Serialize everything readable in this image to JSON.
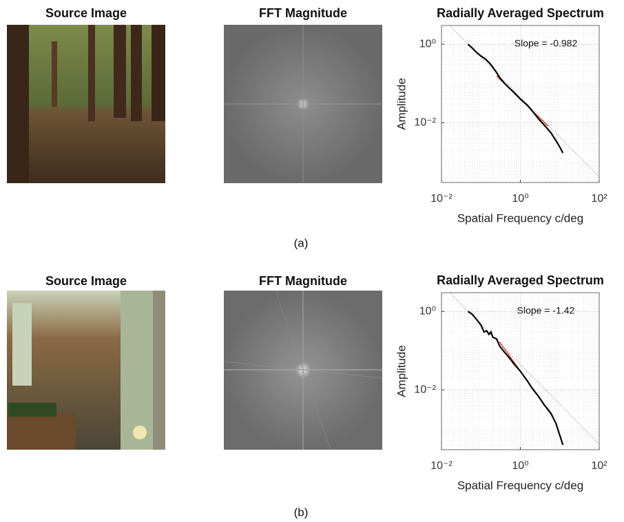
{
  "panels": [
    {
      "image_title": "Source Image",
      "fft_title": "FFT Magnitude",
      "caption": "(a)"
    },
    {
      "image_title": "Source Image",
      "fft_title": "FFT Magnitude",
      "caption": "(b)"
    }
  ],
  "chart_data": [
    {
      "type": "line",
      "title": "Radially Averaged Spectrum",
      "xlabel": "Spatial Frequency c/deg",
      "ylabel": "Amplitude",
      "annotation": "Slope = -0.982",
      "log_x": true,
      "log_y": true,
      "grid": true,
      "xlim": [
        0.01,
        100
      ],
      "ylim": [
        0.0003,
        3
      ],
      "xticks": [
        {
          "value": 0.01,
          "label": "10⁻²"
        },
        {
          "value": 1,
          "label": "10⁰"
        },
        {
          "value": 100,
          "label": "10²"
        }
      ],
      "yticks": [
        {
          "value": 0.01,
          "label": "10⁻²"
        },
        {
          "value": 1,
          "label": "10⁰"
        }
      ],
      "x": [
        0.047,
        0.06,
        0.08,
        0.1,
        0.13,
        0.17,
        0.2,
        0.25,
        0.3,
        0.4,
        0.5,
        0.7,
        1,
        1.5,
        2,
        3,
        4,
        5,
        6,
        8,
        10,
        12
      ],
      "series": [
        {
          "color": "#d9402b",
          "values": [
            null,
            null,
            null,
            null,
            null,
            null,
            null,
            0.156,
            0.13,
            0.098,
            0.079,
            0.057,
            0.04,
            0.027,
            0.02,
            0.0136,
            0.0103,
            0.0082,
            null,
            null,
            null,
            null
          ]
        },
        {
          "color": "#000000",
          "values": [
            1.0,
            0.8,
            0.6,
            0.5,
            0.42,
            0.32,
            0.26,
            0.19,
            0.14,
            0.1,
            0.08,
            0.058,
            0.04,
            0.028,
            0.02,
            0.012,
            0.0088,
            0.0068,
            0.0055,
            0.0035,
            0.0024,
            0.0017
          ]
        }
      ]
    },
    {
      "type": "line",
      "title": "Radially Averaged Spectrum",
      "xlabel": "Spatial Frequency c/deg",
      "ylabel": "Amplitude",
      "annotation": "Slope = -1.42",
      "log_x": true,
      "log_y": true,
      "grid": true,
      "xlim": [
        0.01,
        100
      ],
      "ylim": [
        0.0003,
        3
      ],
      "xticks": [
        {
          "value": 0.01,
          "label": "10⁻²"
        },
        {
          "value": 1,
          "label": "10⁰"
        },
        {
          "value": 100,
          "label": "10²"
        }
      ],
      "yticks": [
        {
          "value": 0.01,
          "label": "10⁻²"
        },
        {
          "value": 1,
          "label": "10⁰"
        }
      ],
      "x": [
        0.047,
        0.06,
        0.08,
        0.1,
        0.12,
        0.14,
        0.16,
        0.18,
        0.2,
        0.25,
        0.3,
        0.4,
        0.5,
        0.7,
        1,
        1.5,
        2,
        3,
        4,
        5,
        6,
        8,
        10,
        12
      ],
      "series": [
        {
          "color": "#d9402b",
          "values": [
            null,
            null,
            null,
            null,
            null,
            null,
            null,
            null,
            null,
            null,
            0.166,
            0.109,
            0.08,
            0.05,
            0.03,
            0.0169,
            0.0112,
            0.0063,
            0.0042,
            0.003,
            0.0024,
            null,
            null,
            null
          ]
        },
        {
          "color": "#000000",
          "values": [
            1.0,
            0.85,
            0.6,
            0.45,
            0.3,
            0.32,
            0.26,
            0.3,
            0.22,
            0.2,
            0.13,
            0.09,
            0.07,
            0.045,
            0.03,
            0.017,
            0.011,
            0.0065,
            0.0042,
            0.0032,
            0.0025,
            0.0014,
            0.0007,
            0.0004
          ]
        }
      ]
    }
  ]
}
